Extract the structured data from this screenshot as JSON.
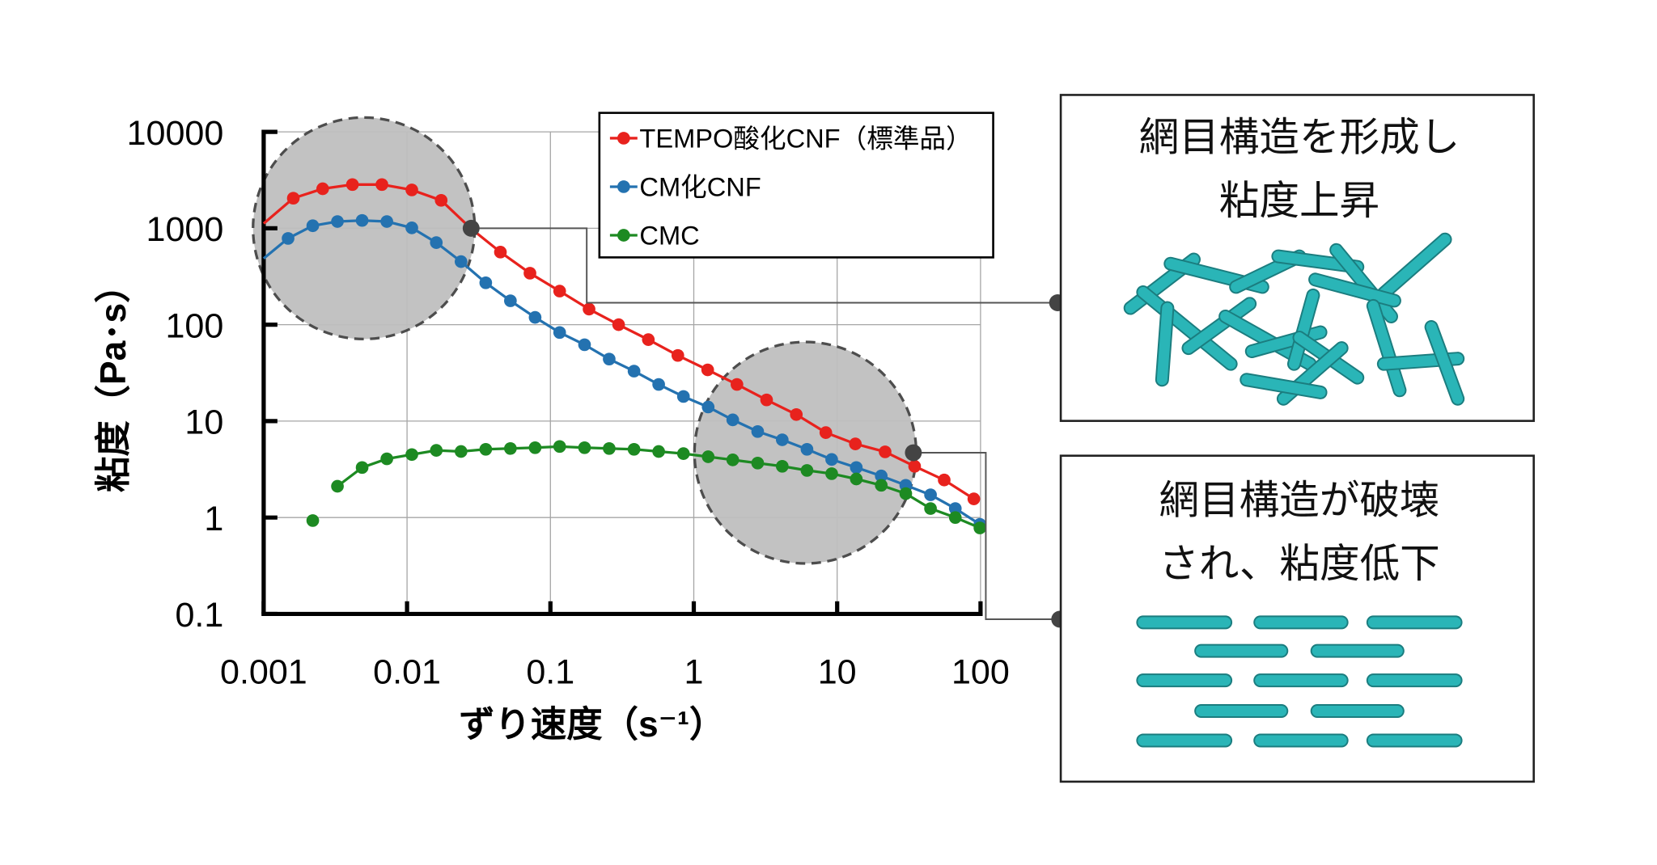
{
  "chart_data": {
    "type": "line",
    "xscale": "log",
    "yscale": "log",
    "xlabel": "ずり速度（s⁻¹）",
    "ylabel": "粘度（Pa･s）",
    "xlim": [
      0.001,
      100
    ],
    "ylim": [
      0.1,
      10000
    ],
    "xticks": [
      "0.001",
      "0.01",
      "0.1",
      "1",
      "10",
      "100"
    ],
    "yticks": [
      "0.1",
      "1",
      "10",
      "100",
      "1000",
      "10000"
    ],
    "grid": true,
    "legend_position": "top-right",
    "series": [
      {
        "name": "TEMPO酸化CNF（標準品）",
        "color": "#e8221d",
        "line_start": [
          0.001,
          1120
        ],
        "x": [
          0.00161,
          0.00258,
          0.00416,
          0.00668,
          0.0108,
          0.0173,
          0.0278,
          0.0448,
          0.072,
          0.116,
          0.186,
          0.299,
          0.482,
          0.774,
          1.25,
          2.0,
          3.22,
          5.19,
          8.34,
          13.4,
          21.6,
          34.7,
          55.8,
          89.8
        ],
        "y": [
          2050,
          2570,
          2840,
          2840,
          2500,
          1950,
          1000,
          566,
          342,
          223,
          145,
          100,
          70,
          48,
          34,
          24,
          16.6,
          11.7,
          7.6,
          5.8,
          4.8,
          3.4,
          2.45,
          1.56
        ]
      },
      {
        "name": "CM化CNF",
        "color": "#2472b0",
        "line_start": [
          0.001,
          486
        ],
        "x": [
          0.00148,
          0.0022,
          0.00327,
          0.00486,
          0.00723,
          0.0108,
          0.016,
          0.0238,
          0.0354,
          0.0526,
          0.0782,
          0.116,
          0.173,
          0.257,
          0.383,
          0.569,
          0.847,
          1.26,
          1.87,
          2.79,
          4.14,
          6.16,
          9.16,
          13.6,
          20.3,
          30.1,
          44.8,
          66.7,
          99
        ],
        "y": [
          785,
          1062,
          1175,
          1205,
          1175,
          1010,
          710,
          451,
          272,
          177,
          119,
          83,
          62,
          44,
          33,
          24,
          18,
          14,
          10.3,
          7.8,
          6.4,
          5.1,
          4.0,
          3.3,
          2.7,
          2.16,
          1.72,
          1.24,
          0.85
        ]
      },
      {
        "name": "CMC",
        "color": "#1d8a22",
        "line_start": null,
        "isolated_first_point": true,
        "x": [
          0.0022,
          0.00327,
          0.00486,
          0.00723,
          0.0108,
          0.016,
          0.0238,
          0.0354,
          0.0526,
          0.0782,
          0.116,
          0.173,
          0.257,
          0.383,
          0.569,
          0.847,
          1.26,
          1.87,
          2.79,
          4.14,
          6.16,
          9.16,
          13.6,
          20.3,
          30.1,
          44.8,
          66.7,
          99
        ],
        "y": [
          0.93,
          2.11,
          3.3,
          4.06,
          4.5,
          4.97,
          4.84,
          5.1,
          5.2,
          5.3,
          5.45,
          5.3,
          5.2,
          5.1,
          4.84,
          4.6,
          4.27,
          3.96,
          3.67,
          3.4,
          3.08,
          2.85,
          2.51,
          2.16,
          1.77,
          1.24,
          1.0,
          0.78
        ]
      }
    ],
    "highlights": [
      {
        "region": "low shear",
        "center": [
          0.005,
          1000
        ],
        "callout_point": [
          0.028,
          1000
        ]
      },
      {
        "region": "high shear",
        "center": [
          6,
          4.7
        ],
        "callout_point": [
          34,
          4.7
        ]
      }
    ]
  },
  "callouts": [
    {
      "lines": [
        "網目構造を形成し",
        "粘度上昇"
      ],
      "illustration": "entangled-fibers"
    },
    {
      "lines": [
        "網目構造が破壊",
        "され、粘度低下"
      ],
      "illustration": "aligned-fibers"
    }
  ],
  "colors": {
    "fiber": "#2ab5b7",
    "fiber_edge": "#1b7d7f",
    "highlight": "#bfbfbf"
  }
}
